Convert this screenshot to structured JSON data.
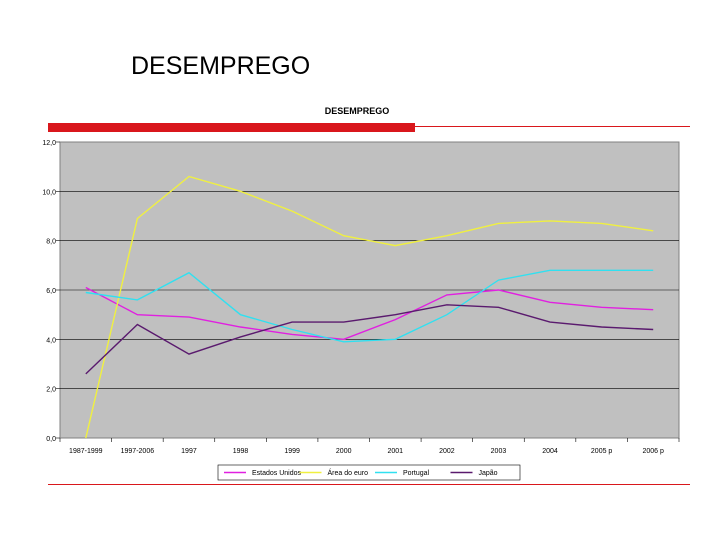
{
  "slide": {
    "title": "DESEMPREGO"
  },
  "colors": {
    "accent_red": "#d9171c",
    "plot_background": "#c0c0c0"
  },
  "chart_data": {
    "type": "line",
    "title": "DESEMPREGO",
    "xlabel": "",
    "ylabel": "",
    "ylim": [
      0,
      12
    ],
    "yticks": [
      "0,0",
      "2,0",
      "4,0",
      "6,0",
      "8,0",
      "10,0",
      "12,0"
    ],
    "grid": true,
    "legend_position": "bottom",
    "categories": [
      "1987-1999",
      "1997-2006",
      "1997",
      "1998",
      "1999",
      "2000",
      "2001",
      "2002",
      "2003",
      "2004",
      "2005 p",
      "2006 p"
    ],
    "series": [
      {
        "name": "Estados Unidos",
        "color": "#e020e0",
        "values": [
          6.1,
          5.0,
          4.9,
          4.5,
          4.2,
          4.0,
          4.8,
          5.8,
          6.0,
          5.5,
          5.3,
          5.2
        ]
      },
      {
        "name": "Área do euro",
        "color": "#f0f040",
        "values": [
          0.0,
          8.9,
          10.6,
          10.0,
          9.2,
          8.2,
          7.8,
          8.2,
          8.7,
          8.8,
          8.7,
          8.4
        ]
      },
      {
        "name": "Portugal",
        "color": "#30e0f0",
        "values": [
          5.9,
          5.6,
          6.7,
          5.0,
          4.4,
          3.9,
          4.0,
          5.0,
          6.4,
          6.8,
          6.8,
          6.8
        ]
      },
      {
        "name": "Japão",
        "color": "#5a1a6e",
        "values": [
          2.6,
          4.6,
          3.4,
          4.1,
          4.7,
          4.7,
          5.0,
          5.4,
          5.3,
          4.7,
          4.5,
          4.4
        ]
      }
    ]
  }
}
